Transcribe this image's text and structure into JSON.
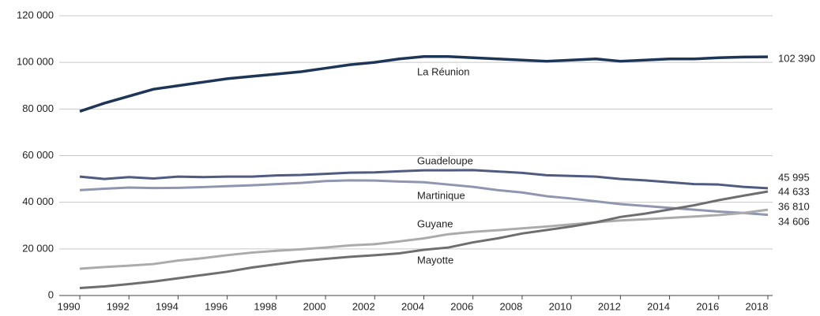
{
  "chart_data": {
    "type": "line",
    "x": [
      1990,
      1991,
      1992,
      1993,
      1994,
      1995,
      1996,
      1997,
      1998,
      1999,
      2000,
      2001,
      2002,
      2003,
      2004,
      2005,
      2006,
      2007,
      2008,
      2009,
      2010,
      2011,
      2012,
      2013,
      2014,
      2015,
      2016,
      2017,
      2018
    ],
    "xlim": [
      1990,
      2018
    ],
    "xticks": [
      1990,
      1992,
      1994,
      1996,
      1998,
      2000,
      2002,
      2004,
      2006,
      2008,
      2010,
      2012,
      2014,
      2016,
      2018
    ],
    "ylim": [
      0,
      120000
    ],
    "yticks": [
      0,
      {
        "value": 20000,
        "label": "20 000"
      },
      {
        "value": 40000,
        "label": "40 000"
      },
      {
        "value": 60000,
        "label": "60 000"
      },
      {
        "value": 80000,
        "label": "80 000"
      },
      {
        "value": 100000,
        "label": "100 000"
      },
      {
        "value": 120000,
        "label": "120 000"
      }
    ],
    "grid": true,
    "series": [
      {
        "name": "La Réunion",
        "color": "#1d3557",
        "values": [
          79000,
          82500,
          85500,
          88500,
          90000,
          91500,
          93000,
          94000,
          95000,
          96000,
          97500,
          99000,
          100000,
          101500,
          102500,
          102500,
          102000,
          101500,
          101000,
          100500,
          101000,
          101500,
          100500,
          101000,
          101500,
          101500,
          102000,
          102300,
          102390
        ],
        "value_labels": [
          null,
          null,
          null,
          null,
          null,
          null,
          null,
          null,
          null,
          null,
          null,
          null,
          null,
          null,
          null,
          null,
          null,
          null,
          null,
          null,
          null,
          null,
          null,
          null,
          null,
          null,
          null,
          null,
          "102 390"
        ]
      },
      {
        "name": "Guadeloupe",
        "color": "#4f5b80",
        "values": [
          51000,
          50000,
          50800,
          50200,
          51000,
          50800,
          51000,
          51000,
          51500,
          51700,
          52200,
          52700,
          52800,
          53300,
          53700,
          53700,
          53800,
          53200,
          52600,
          51600,
          51300,
          51000,
          50000,
          49400,
          48600,
          47800,
          47600,
          46600,
          45995
        ],
        "value_labels": [
          null,
          null,
          null,
          null,
          null,
          null,
          null,
          null,
          null,
          null,
          null,
          null,
          null,
          null,
          null,
          null,
          null,
          null,
          null,
          null,
          null,
          null,
          null,
          null,
          null,
          null,
          null,
          null,
          "45 995"
        ]
      },
      {
        "name": "Martinique",
        "color": "#8f96b0",
        "values": [
          45200,
          45800,
          46300,
          46100,
          46200,
          46500,
          46900,
          47300,
          47800,
          48300,
          49100,
          49400,
          49300,
          48900,
          48600,
          47600,
          46600,
          45200,
          44200,
          42600,
          41600,
          40400,
          39200,
          38400,
          37600,
          36800,
          36000,
          35400,
          34606
        ],
        "value_labels": [
          null,
          null,
          null,
          null,
          null,
          null,
          null,
          null,
          null,
          null,
          null,
          null,
          null,
          null,
          null,
          null,
          null,
          null,
          null,
          null,
          null,
          null,
          null,
          null,
          null,
          null,
          null,
          null,
          "34 606"
        ]
      },
      {
        "name": "Guyane",
        "color": "#ababab",
        "values": [
          11500,
          12200,
          12800,
          13500,
          15000,
          16000,
          17300,
          18400,
          19200,
          19800,
          20600,
          21500,
          22000,
          23200,
          24500,
          26300,
          27300,
          28000,
          28800,
          29600,
          30500,
          31400,
          32200,
          32700,
          33300,
          33900,
          34500,
          35400,
          36810
        ],
        "value_labels": [
          null,
          null,
          null,
          null,
          null,
          null,
          null,
          null,
          null,
          null,
          null,
          null,
          null,
          null,
          null,
          null,
          null,
          null,
          null,
          null,
          null,
          null,
          null,
          null,
          null,
          null,
          null,
          null,
          "36 810"
        ]
      },
      {
        "name": "Mayotte",
        "color": "#6e6e70",
        "values": [
          3200,
          3900,
          4900,
          6000,
          7400,
          8800,
          10200,
          12000,
          13400,
          14800,
          15700,
          16600,
          17300,
          18100,
          19600,
          20600,
          22800,
          24500,
          26600,
          28100,
          29600,
          31400,
          33700,
          35100,
          36900,
          38700,
          40900,
          42800,
          44633
        ],
        "value_labels": [
          null,
          null,
          null,
          null,
          null,
          null,
          null,
          null,
          null,
          null,
          null,
          null,
          null,
          null,
          null,
          null,
          null,
          null,
          null,
          null,
          null,
          null,
          null,
          null,
          null,
          null,
          null,
          null,
          "44 633"
        ]
      }
    ]
  }
}
